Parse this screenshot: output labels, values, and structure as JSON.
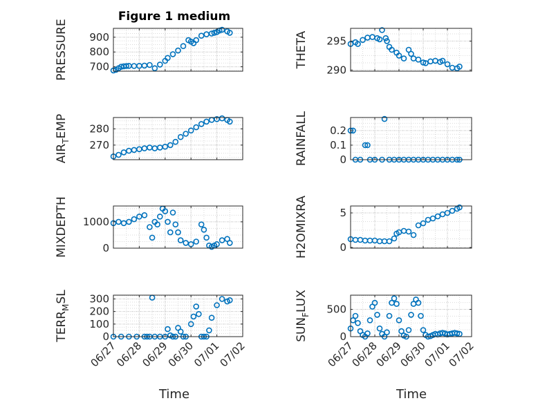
{
  "figure_title": "Figure 1 medium",
  "x_label": "Time",
  "x_tick_labels": [
    "06/27",
    "06/28",
    "06/29",
    "06/30",
    "07/01",
    "07/02"
  ],
  "colors": {
    "marker": "#0072BD",
    "axis": "#262626",
    "grid": "#d9d9d9",
    "background": "#ffffff"
  },
  "chart_data": [
    {
      "type": "scatter",
      "position": "top-left",
      "ylabel": "PRESSURE",
      "title": "Figure 1 medium",
      "x_range": [
        "06/27",
        "07/02"
      ],
      "ylim": [
        670,
        960
      ],
      "yticks": [
        700,
        800,
        900
      ],
      "grid": true,
      "minor_grid": true,
      "series": [
        {
          "x_days": [
            0.0,
            0.1,
            0.2,
            0.3,
            0.4,
            0.5,
            0.6,
            0.8,
            1.0,
            1.2,
            1.4,
            1.6,
            1.8,
            2.0,
            2.1,
            2.3,
            2.5,
            2.7,
            2.9,
            3.0,
            3.1,
            3.2,
            3.4,
            3.6,
            3.8,
            3.9,
            4.0,
            4.1,
            4.2,
            4.4,
            4.5
          ],
          "y": [
            675,
            680,
            690,
            700,
            703,
            705,
            706,
            705,
            706,
            708,
            712,
            690,
            715,
            740,
            760,
            785,
            810,
            840,
            880,
            870,
            860,
            880,
            910,
            920,
            925,
            930,
            935,
            945,
            950,
            940,
            930
          ]
        }
      ]
    },
    {
      "type": "scatter",
      "position": "top-right",
      "ylabel": "THETA",
      "x_range": [
        "06/27",
        "07/02"
      ],
      "ylim": [
        289.8,
        297.2
      ],
      "yticks": [
        290,
        295
      ],
      "grid": true,
      "minor_grid": true,
      "series": [
        {
          "x_days": [
            0.0,
            0.2,
            0.3,
            0.5,
            0.7,
            0.9,
            1.1,
            1.2,
            1.3,
            1.45,
            1.5,
            1.6,
            1.7,
            1.9,
            2.0,
            2.2,
            2.4,
            2.5,
            2.6,
            2.8,
            3.0,
            3.1,
            3.3,
            3.5,
            3.7,
            3.8,
            4.0,
            4.2,
            4.4,
            4.5
          ],
          "y": [
            294.5,
            294.8,
            294.5,
            295.2,
            295.6,
            295.7,
            295.5,
            295.3,
            296.9,
            295.5,
            295,
            294,
            293.5,
            293,
            292.5,
            292.0,
            293.5,
            292.8,
            292,
            291.8,
            291.3,
            291.2,
            291.5,
            291.6,
            291.4,
            291.6,
            291.0,
            290.4,
            290.3,
            290.6
          ]
        }
      ]
    },
    {
      "type": "scatter",
      "position": "second-left",
      "ylabel": "AIR_TEMP",
      "x_range": [
        "06/27",
        "07/02"
      ],
      "ylim": [
        261,
        287
      ],
      "yticks": [
        260,
        270,
        280
      ],
      "grid": true,
      "minor_grid": true,
      "series": [
        {
          "x_days": [
            0.0,
            0.2,
            0.4,
            0.6,
            0.8,
            1.0,
            1.2,
            1.4,
            1.6,
            1.8,
            2.0,
            2.2,
            2.4,
            2.6,
            2.8,
            3.0,
            3.2,
            3.4,
            3.6,
            3.8,
            4.0,
            4.2,
            4.4,
            4.5
          ],
          "y": [
            263,
            264,
            265.5,
            266.5,
            267,
            267.5,
            268,
            268.5,
            268,
            268.5,
            269,
            270,
            272,
            275,
            277,
            279,
            281,
            283,
            284.5,
            285.5,
            286,
            286.5,
            285.5,
            284.5
          ]
        }
      ]
    },
    {
      "type": "scatter",
      "position": "second-right",
      "ylabel": "RAINFALL",
      "x_range": [
        "06/27",
        "07/02"
      ],
      "ylim": [
        0,
        0.29
      ],
      "yticks": [
        0,
        0.1,
        0.2
      ],
      "grid": true,
      "minor_grid": true,
      "series": [
        {
          "x_days": [
            0.0,
            0.1,
            0.2,
            0.4,
            0.6,
            0.7,
            0.8,
            1.0,
            1.3,
            1.4,
            1.6,
            1.8,
            2.0,
            2.2,
            2.4,
            2.6,
            2.8,
            3.0,
            3.2,
            3.4,
            3.6,
            3.8,
            4.0,
            4.2,
            4.4,
            4.5
          ],
          "y": [
            0.2,
            0.2,
            0,
            0,
            0.1,
            0.1,
            0,
            0,
            0,
            0.28,
            0,
            0,
            0,
            0,
            0,
            0,
            0,
            0,
            0,
            0,
            0,
            0,
            0,
            0,
            0,
            0
          ]
        }
      ]
    },
    {
      "type": "scatter",
      "position": "third-left",
      "ylabel": "MIXDEPTH",
      "x_range": [
        "06/27",
        "07/02"
      ],
      "ylim": [
        0,
        1600
      ],
      "yticks": [
        0,
        1000
      ],
      "grid": true,
      "minor_grid": true,
      "series": [
        {
          "x_days": [
            0.0,
            0.2,
            0.4,
            0.6,
            0.8,
            1.0,
            1.2,
            1.4,
            1.5,
            1.6,
            1.7,
            1.8,
            1.9,
            2.0,
            2.1,
            2.2,
            2.3,
            2.4,
            2.5,
            2.6,
            2.8,
            3.0,
            3.2,
            3.4,
            3.5,
            3.6,
            3.7,
            3.8,
            3.9,
            4.0,
            4.2,
            4.4,
            4.5
          ],
          "y": [
            950,
            1000,
            950,
            1000,
            1100,
            1200,
            1250,
            800,
            400,
            1000,
            900,
            1200,
            1500,
            1400,
            1000,
            600,
            1350,
            900,
            600,
            300,
            200,
            150,
            250,
            900,
            700,
            400,
            100,
            50,
            100,
            150,
            300,
            350,
            200
          ]
        }
      ]
    },
    {
      "type": "scatter",
      "position": "third-right",
      "ylabel": "H2OMIXRA",
      "x_range": [
        "06/27",
        "07/02"
      ],
      "ylim": [
        -0.1,
        6
      ],
      "yticks": [
        0,
        5
      ],
      "grid": true,
      "minor_grid": true,
      "series": [
        {
          "x_days": [
            0.0,
            0.2,
            0.4,
            0.6,
            0.8,
            1.0,
            1.2,
            1.4,
            1.6,
            1.8,
            1.9,
            2.0,
            2.2,
            2.4,
            2.6,
            2.8,
            3.0,
            3.2,
            3.4,
            3.6,
            3.8,
            4.0,
            4.2,
            4.4,
            4.5
          ],
          "y": [
            1.2,
            1.1,
            1.1,
            1.0,
            1.0,
            1.0,
            0.9,
            0.9,
            0.9,
            1.3,
            2,
            2.2,
            2.4,
            2.3,
            1.8,
            3.2,
            3.5,
            4.0,
            4.2,
            4.5,
            4.8,
            5.0,
            5.3,
            5.6,
            5.8
          ]
        }
      ]
    },
    {
      "type": "scatter",
      "position": "bottom-left",
      "ylabel": "TERR_MSL",
      "x_range": [
        "06/27",
        "07/02"
      ],
      "ylim": [
        0,
        330
      ],
      "yticks": [
        0,
        100,
        200,
        300
      ],
      "grid": true,
      "minor_grid": true,
      "series": [
        {
          "x_days": [
            0.0,
            0.3,
            0.6,
            0.9,
            1.2,
            1.3,
            1.4,
            1.5,
            1.6,
            1.8,
            2.0,
            2.1,
            2.2,
            2.3,
            2.4,
            2.5,
            2.6,
            2.7,
            2.8,
            3.0,
            3.1,
            3.2,
            3.3,
            3.4,
            3.5,
            3.6,
            3.7,
            3.8,
            4.0,
            4.2,
            4.4,
            4.5
          ],
          "y": [
            0,
            0,
            0,
            0,
            0,
            0,
            0,
            310,
            0,
            0,
            0,
            60,
            10,
            0,
            0,
            70,
            40,
            0,
            0,
            100,
            160,
            240,
            180,
            0,
            0,
            0,
            50,
            150,
            250,
            300,
            280,
            290
          ]
        }
      ]
    },
    {
      "type": "scatter",
      "position": "bottom-right",
      "ylabel": "SUN_FLUX",
      "x_range": [
        "06/27",
        "07/02"
      ],
      "ylim": [
        0,
        760
      ],
      "yticks": [
        0,
        500
      ],
      "grid": true,
      "minor_grid": true,
      "series": [
        {
          "x_days": [
            0.0,
            0.1,
            0.2,
            0.3,
            0.4,
            0.5,
            0.6,
            0.7,
            0.8,
            0.9,
            1.0,
            1.1,
            1.2,
            1.3,
            1.4,
            1.5,
            1.6,
            1.7,
            1.8,
            1.9,
            2.0,
            2.1,
            2.2,
            2.3,
            2.4,
            2.5,
            2.6,
            2.7,
            2.8,
            2.9,
            3.0,
            3.1,
            3.2,
            3.3,
            3.4,
            3.5,
            3.6,
            3.7,
            3.8,
            3.9,
            4.0,
            4.1,
            4.2,
            4.3,
            4.4,
            4.5
          ],
          "y": [
            150,
            300,
            380,
            250,
            100,
            30,
            0,
            60,
            300,
            550,
            620,
            400,
            150,
            50,
            0,
            80,
            380,
            620,
            700,
            600,
            300,
            100,
            20,
            0,
            120,
            400,
            600,
            680,
            620,
            380,
            120,
            30,
            0,
            10,
            30,
            50,
            40,
            60,
            70,
            60,
            40,
            50,
            60,
            70,
            60,
            50
          ]
        }
      ]
    }
  ]
}
